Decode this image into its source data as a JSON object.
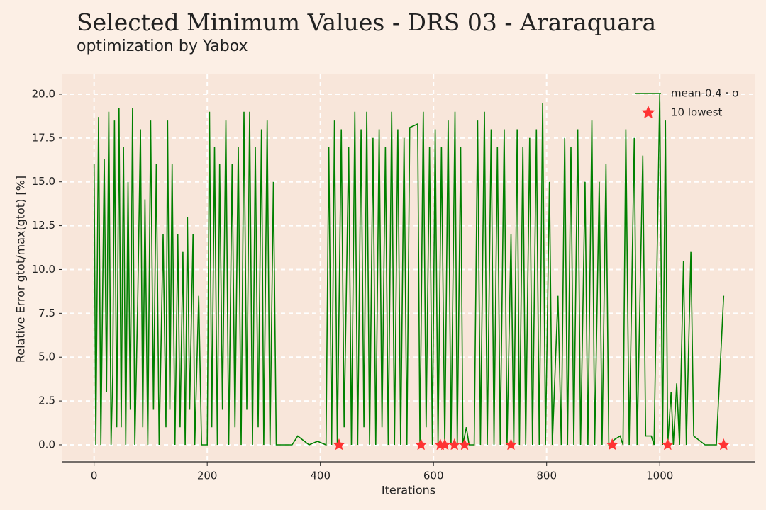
{
  "chart_data": {
    "type": "line",
    "title": "Selected Minimum Values - DRS 03 - Araraquara",
    "subtitle": "optimization by Yabox",
    "x_label": "Iterations",
    "y_label": "Relative Error gtot/max(gtot) [%]",
    "xlim": [
      -56,
      1169
    ],
    "ylim": [
      -0.89,
      21.13
    ],
    "xticks": [
      0,
      200,
      400,
      600,
      800,
      1000
    ],
    "yticks": [
      {
        "value": 0,
        "label": "0.0"
      },
      {
        "value": 2.5,
        "label": "2.5"
      },
      {
        "value": 5,
        "label": "5.0"
      },
      {
        "value": 7.5,
        "label": "7.5"
      },
      {
        "value": 10,
        "label": "10.0"
      },
      {
        "value": 12.5,
        "label": "12.5"
      },
      {
        "value": 15,
        "label": "15.0"
      },
      {
        "value": 17.5,
        "label": "17.5"
      },
      {
        "value": 20,
        "label": "20.0"
      }
    ],
    "grid": true,
    "legend": "upper right",
    "series": [
      {
        "name": "mean-0.4 · σ",
        "color": "#008000",
        "marker": "line",
        "x": [
          0,
          3,
          8,
          12,
          18,
          22,
          26,
          30,
          33,
          36,
          40,
          44,
          48,
          52,
          56,
          60,
          64,
          68,
          72,
          77,
          82,
          86,
          90,
          95,
          100,
          105,
          110,
          115,
          122,
          127,
          130,
          134,
          138,
          143,
          148,
          152,
          157,
          161,
          165,
          169,
          175,
          178,
          185,
          190,
          200,
          204,
          208,
          213,
          218,
          222,
          227,
          233,
          238,
          244,
          249,
          255,
          260,
          265,
          270,
          275,
          280,
          285,
          290,
          296,
          300,
          306,
          311,
          317,
          322,
          330,
          340,
          350,
          360,
          380,
          395,
          410,
          415,
          420,
          425,
          430,
          437,
          442,
          450,
          455,
          461,
          466,
          472,
          477,
          482,
          487,
          493,
          498,
          504,
          509,
          515,
          520,
          526,
          531,
          537,
          542,
          548,
          553,
          558,
          572,
          576,
          582,
          587,
          593,
          598,
          603,
          608,
          614,
          620,
          626,
          631,
          638,
          642,
          648,
          652,
          658,
          663,
          672,
          678,
          683,
          690,
          695,
          702,
          707,
          713,
          718,
          725,
          730,
          737,
          742,
          748,
          752,
          758,
          763,
          770,
          775,
          782,
          787,
          793,
          798,
          805,
          810,
          820,
          826,
          832,
          837,
          843,
          848,
          855,
          860,
          868,
          873,
          880,
          885,
          893,
          898,
          905,
          910,
          920,
          930,
          935,
          940,
          946,
          955,
          960,
          970,
          975,
          985,
          990,
          1000,
          1005,
          1010,
          1014,
          1020,
          1024,
          1030,
          1035,
          1042,
          1047,
          1055,
          1060,
          1080,
          1100,
          1113
        ],
        "values": [
          16,
          0,
          18.7,
          0,
          16.3,
          3,
          19,
          0,
          4,
          18.5,
          1,
          19.2,
          1,
          17,
          0,
          15,
          2,
          19.2,
          0,
          8,
          18,
          1,
          14,
          0,
          18.5,
          2,
          16,
          0,
          12,
          1,
          18.5,
          2,
          16,
          0,
          12,
          1,
          11,
          0,
          13,
          2,
          12,
          0,
          8.5,
          0,
          0,
          19,
          1,
          17,
          0,
          16,
          2,
          18.5,
          0,
          16,
          1,
          17,
          0,
          19,
          2,
          19,
          0,
          17,
          1,
          18,
          0,
          18.5,
          0,
          15,
          0,
          0,
          0,
          0,
          0.5,
          0,
          0.2,
          0,
          17,
          0,
          18.5,
          0,
          18,
          1,
          17,
          0,
          19,
          0,
          18,
          1,
          19,
          0,
          17.5,
          0,
          18,
          1,
          17,
          0,
          19,
          0,
          18,
          0,
          17.5,
          0,
          18.1,
          18.3,
          0,
          19,
          1,
          17,
          0,
          18,
          0,
          17,
          0,
          18.5,
          0,
          19,
          0,
          17,
          0,
          1,
          0,
          0,
          18.5,
          0,
          19,
          0,
          18,
          0,
          17,
          0,
          18,
          0,
          12,
          0,
          18,
          0,
          17,
          0,
          17.5,
          0,
          18,
          0,
          19.5,
          0,
          15,
          0,
          8.5,
          0,
          17.5,
          0,
          17,
          0,
          18,
          0,
          15,
          0,
          18.5,
          0,
          15,
          0,
          16,
          0,
          0.3,
          0.5,
          0,
          18,
          0,
          17.5,
          0,
          16.5,
          0.5,
          0.5,
          0,
          20,
          0,
          18.5,
          0,
          3,
          0,
          3.5,
          0,
          10.5,
          0,
          11,
          0.5,
          0,
          0,
          8.5
        ]
      },
      {
        "name": "10 lowest",
        "color": "#ff3333",
        "marker": "star",
        "x": [
          433,
          578,
          612,
          620,
          637,
          655,
          737,
          916,
          1014,
          1113
        ],
        "values": [
          0,
          0,
          0,
          0,
          0,
          0,
          0,
          0,
          0,
          0
        ]
      }
    ]
  }
}
